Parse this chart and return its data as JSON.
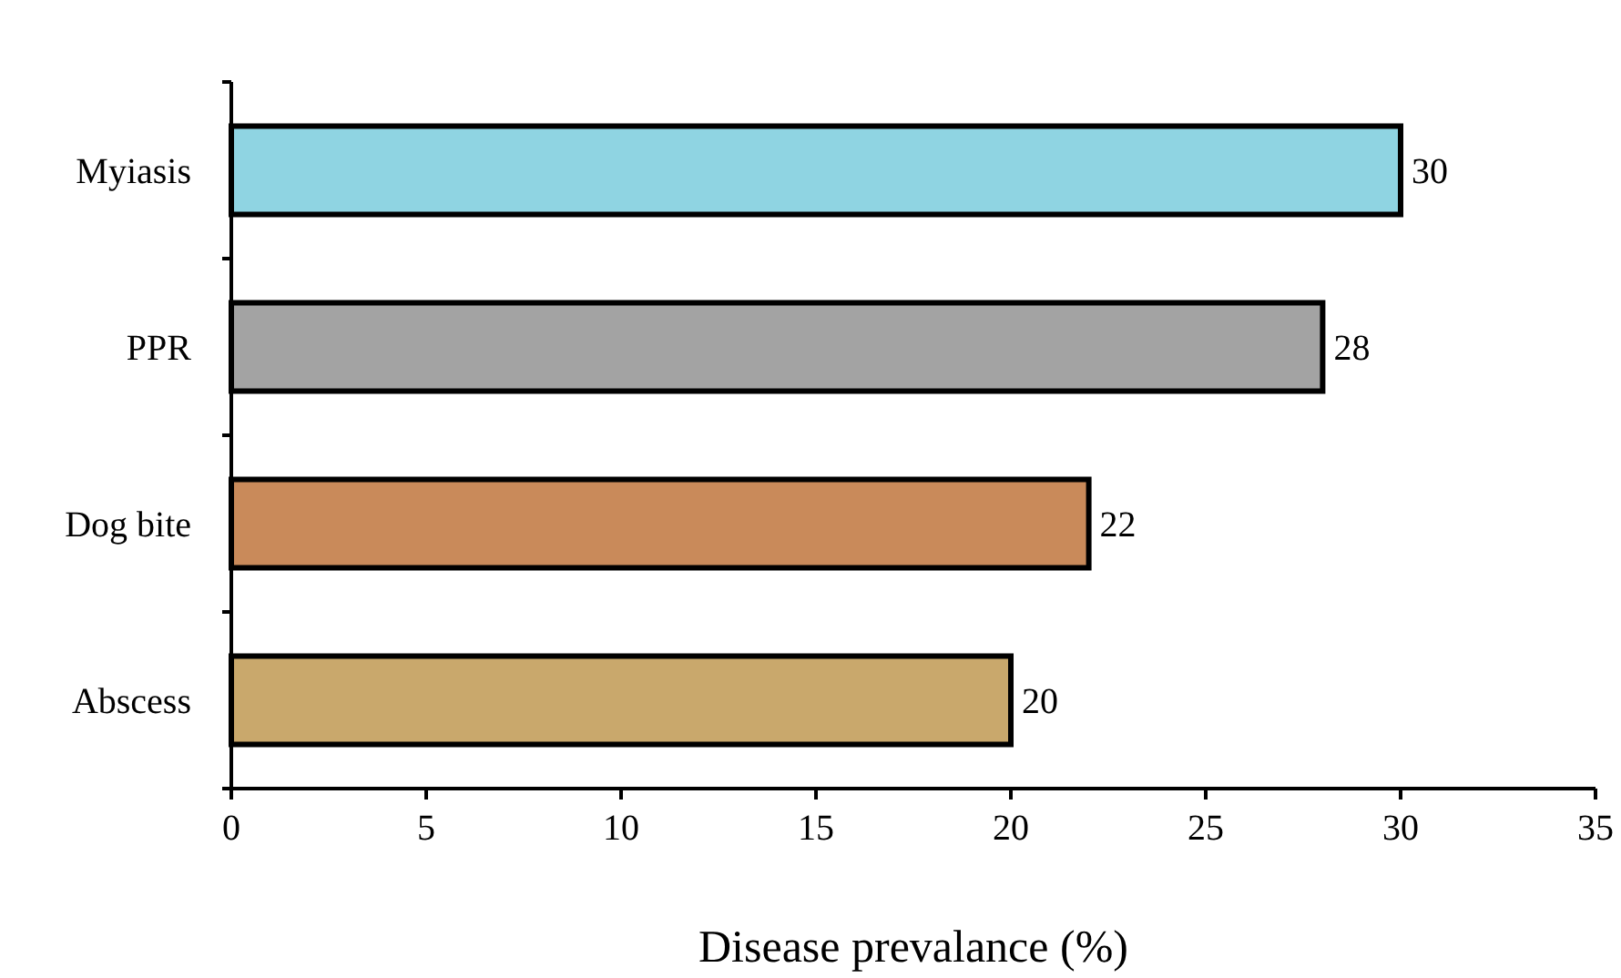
{
  "chart_data": {
    "type": "bar",
    "orientation": "horizontal",
    "xlabel": "Disease prevalance (%)",
    "categories": [
      "Myiasis",
      "PPR",
      "Dog bite",
      "Abscess"
    ],
    "values": [
      30,
      28,
      22,
      20
    ],
    "colors": [
      "#8fd4e2",
      "#a3a3a3",
      "#c98a5a",
      "#c9a86c"
    ],
    "xlim": [
      0,
      35
    ],
    "xticks": [
      0,
      5,
      10,
      15,
      20,
      25,
      30,
      35
    ],
    "data_labels": true,
    "grid": false
  }
}
